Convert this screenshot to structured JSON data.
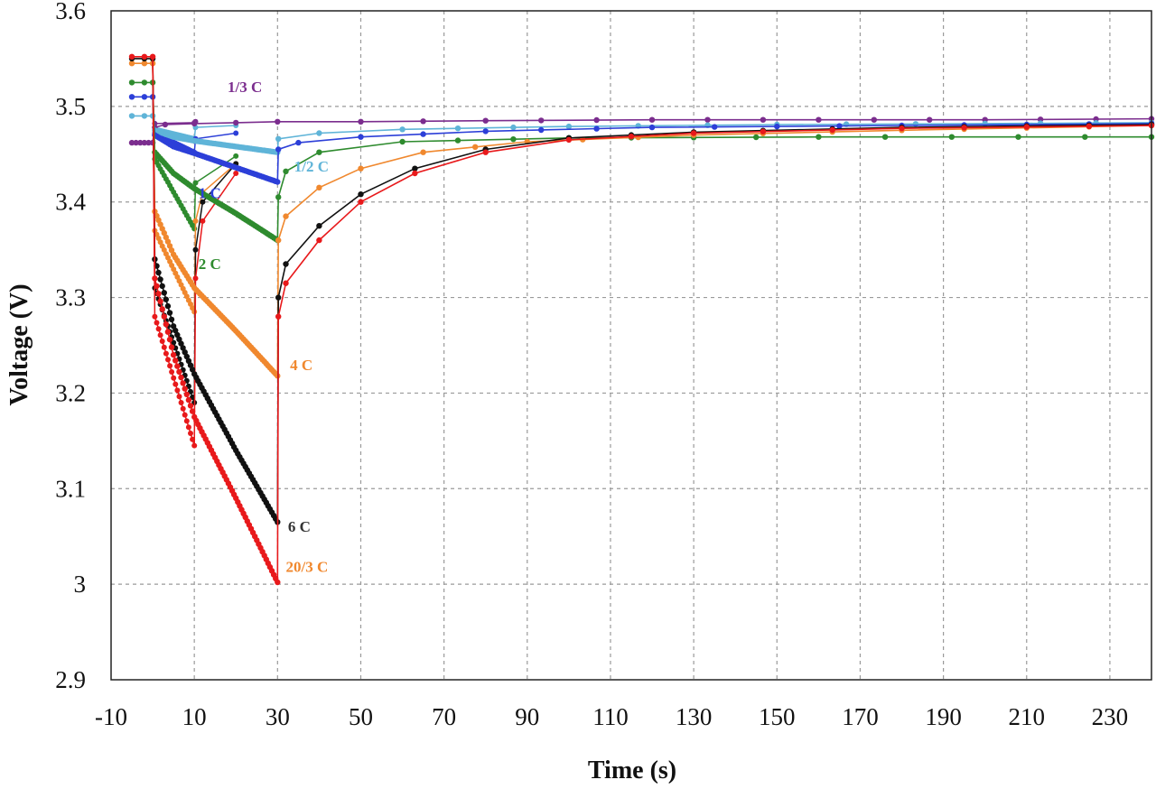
{
  "chart_data": {
    "type": "line",
    "xlabel": "Time (s)",
    "ylabel": "Voltage (V)",
    "xlim": [
      -10,
      240
    ],
    "ylim": [
      2.9,
      3.6
    ],
    "xticks": [
      -10,
      10,
      30,
      50,
      70,
      90,
      110,
      130,
      150,
      170,
      190,
      210,
      230
    ],
    "yticks": [
      2.9,
      3.0,
      3.1,
      3.2,
      3.3,
      3.4,
      3.5,
      3.6
    ],
    "ytick_labels": [
      "2.9",
      "3",
      "3.1",
      "3.2",
      "3.3",
      "3.4",
      "3.5",
      "3.6"
    ],
    "grid": true,
    "series": [
      {
        "name": "1/3 C",
        "color": "#7b2d8e",
        "points": [
          [
            -5,
            3.462
          ],
          [
            -4,
            3.462
          ],
          [
            -3,
            3.462
          ],
          [
            -2,
            3.462
          ],
          [
            -1,
            3.462
          ],
          [
            0,
            3.462
          ],
          [
            0.5,
            3.478
          ],
          [
            3,
            3.481
          ],
          [
            10,
            3.482
          ],
          [
            20,
            3.483
          ],
          [
            30,
            3.484
          ],
          [
            50,
            3.484
          ],
          [
            80,
            3.485
          ],
          [
            120,
            3.486
          ],
          [
            160,
            3.486
          ],
          [
            200,
            3.486
          ],
          [
            240,
            3.487
          ]
        ]
      },
      {
        "name": "1/2 C",
        "color": "#5fb4d8",
        "points": [
          [
            -5,
            3.49
          ],
          [
            -2,
            3.49
          ],
          [
            0,
            3.49
          ],
          [
            0.5,
            3.475
          ],
          [
            5,
            3.468
          ],
          [
            10,
            3.464
          ],
          [
            20,
            3.458
          ],
          [
            30,
            3.452
          ],
          [
            30.2,
            3.466
          ],
          [
            40,
            3.472
          ],
          [
            60,
            3.476
          ],
          [
            100,
            3.479
          ],
          [
            150,
            3.481
          ],
          [
            200,
            3.482
          ],
          [
            240,
            3.483
          ]
        ]
      },
      {
        "name": "1 C",
        "color": "#2c3fd8",
        "points": [
          [
            -5,
            3.51
          ],
          [
            -2,
            3.51
          ],
          [
            0,
            3.51
          ],
          [
            0.5,
            3.47
          ],
          [
            5,
            3.458
          ],
          [
            10,
            3.451
          ],
          [
            20,
            3.436
          ],
          [
            30,
            3.421
          ],
          [
            30.2,
            3.455
          ],
          [
            35,
            3.462
          ],
          [
            50,
            3.468
          ],
          [
            80,
            3.474
          ],
          [
            120,
            3.478
          ],
          [
            180,
            3.48
          ],
          [
            240,
            3.482
          ]
        ]
      },
      {
        "name": "2 C",
        "color": "#2e8b2e",
        "points": [
          [
            -5,
            3.525
          ],
          [
            -2,
            3.525
          ],
          [
            0,
            3.525
          ],
          [
            0.5,
            3.452
          ],
          [
            5,
            3.43
          ],
          [
            10,
            3.414
          ],
          [
            20,
            3.388
          ],
          [
            30,
            3.36
          ],
          [
            30.2,
            3.405
          ],
          [
            32,
            3.432
          ],
          [
            40,
            3.452
          ],
          [
            60,
            3.463
          ],
          [
            100,
            3.467
          ],
          [
            160,
            3.468
          ],
          [
            240,
            3.468
          ]
        ]
      },
      {
        "name": "4 C",
        "color": "#f0882e",
        "points": [
          [
            -5,
            3.545
          ],
          [
            -2,
            3.545
          ],
          [
            0,
            3.545
          ],
          [
            0.5,
            3.39
          ],
          [
            5,
            3.345
          ],
          [
            10,
            3.31
          ],
          [
            20,
            3.265
          ],
          [
            30,
            3.218
          ],
          [
            30.2,
            3.36
          ],
          [
            32,
            3.385
          ],
          [
            40,
            3.415
          ],
          [
            50,
            3.435
          ],
          [
            65,
            3.452
          ],
          [
            90,
            3.463
          ],
          [
            130,
            3.47
          ],
          [
            180,
            3.475
          ],
          [
            240,
            3.48
          ]
        ]
      },
      {
        "name": "6 C",
        "color": "#111111",
        "points": [
          [
            -5,
            3.55
          ],
          [
            -2,
            3.55
          ],
          [
            0,
            3.55
          ],
          [
            0.5,
            3.34
          ],
          [
            5,
            3.27
          ],
          [
            10,
            3.22
          ],
          [
            20,
            3.14
          ],
          [
            30,
            3.065
          ],
          [
            30.2,
            3.3
          ],
          [
            32,
            3.335
          ],
          [
            40,
            3.375
          ],
          [
            50,
            3.408
          ],
          [
            63,
            3.435
          ],
          [
            80,
            3.455
          ],
          [
            100,
            3.467
          ],
          [
            130,
            3.473
          ],
          [
            180,
            3.478
          ],
          [
            240,
            3.481
          ]
        ]
      },
      {
        "name": "20/3 C",
        "color": "#e8191b",
        "points": [
          [
            -5,
            3.552
          ],
          [
            -2,
            3.552
          ],
          [
            0,
            3.552
          ],
          [
            0.5,
            3.32
          ],
          [
            5,
            3.24
          ],
          [
            10,
            3.175
          ],
          [
            20,
            3.09
          ],
          [
            30,
            3.002
          ],
          [
            30.2,
            3.28
          ],
          [
            32,
            3.315
          ],
          [
            40,
            3.36
          ],
          [
            50,
            3.4
          ],
          [
            63,
            3.43
          ],
          [
            80,
            3.452
          ],
          [
            100,
            3.465
          ],
          [
            130,
            3.472
          ],
          [
            180,
            3.477
          ],
          [
            240,
            3.48
          ]
        ]
      }
    ],
    "short_pulse_series": [
      {
        "name": "1/3 C",
        "color": "#7b2d8e",
        "points": [
          [
            0,
            3.462
          ],
          [
            0.5,
            3.482
          ],
          [
            10,
            3.483
          ],
          [
            10.3,
            3.484
          ]
        ]
      },
      {
        "name": "1/2 C",
        "color": "#5fb4d8",
        "points": [
          [
            0,
            3.49
          ],
          [
            0.5,
            3.476
          ],
          [
            10,
            3.466
          ],
          [
            10.3,
            3.478
          ],
          [
            20,
            3.48
          ]
        ]
      },
      {
        "name": "1 C",
        "color": "#2c3fd8",
        "points": [
          [
            0,
            3.51
          ],
          [
            0.5,
            3.472
          ],
          [
            10,
            3.452
          ],
          [
            10.3,
            3.466
          ],
          [
            20,
            3.472
          ]
        ]
      },
      {
        "name": "2 C",
        "color": "#2e8b2e",
        "points": [
          [
            0,
            3.525
          ],
          [
            0.5,
            3.445
          ],
          [
            10,
            3.372
          ],
          [
            10.3,
            3.42
          ],
          [
            20,
            3.448
          ]
        ]
      },
      {
        "name": "4 C",
        "color": "#f0882e",
        "points": [
          [
            0,
            3.545
          ],
          [
            0.5,
            3.37
          ],
          [
            10,
            3.285
          ],
          [
            10.3,
            3.38
          ],
          [
            12,
            3.41
          ],
          [
            20,
            3.44
          ]
        ]
      },
      {
        "name": "6 C",
        "color": "#111111",
        "points": [
          [
            0,
            3.55
          ],
          [
            0.5,
            3.31
          ],
          [
            10,
            3.19
          ],
          [
            10.3,
            3.35
          ],
          [
            12,
            3.4
          ],
          [
            20,
            3.44
          ]
        ]
      },
      {
        "name": "20/3 C",
        "color": "#e8191b",
        "points": [
          [
            0,
            3.552
          ],
          [
            0.5,
            3.28
          ],
          [
            10,
            3.145
          ],
          [
            10.3,
            3.32
          ],
          [
            12,
            3.38
          ],
          [
            20,
            3.43
          ]
        ]
      }
    ],
    "annotations": [
      {
        "text": "1/3 C",
        "x": 18,
        "y": 3.515,
        "color": "#7b2d8e"
      },
      {
        "text": "1/2 C",
        "x": 34,
        "y": 3.432,
        "color": "#5fb4d8"
      },
      {
        "text": "1 C",
        "x": 11,
        "y": 3.404,
        "color": "#2c3fd8"
      },
      {
        "text": "2 C",
        "x": 11,
        "y": 3.33,
        "color": "#2e8b2e"
      },
      {
        "text": "4 C",
        "x": 33,
        "y": 3.224,
        "color": "#f0882e"
      },
      {
        "text": "6 C",
        "x": 32.5,
        "y": 3.055,
        "color": "#333333"
      },
      {
        "text": "20/3 C",
        "x": 32,
        "y": 3.013,
        "color": "#f0882e"
      }
    ]
  }
}
